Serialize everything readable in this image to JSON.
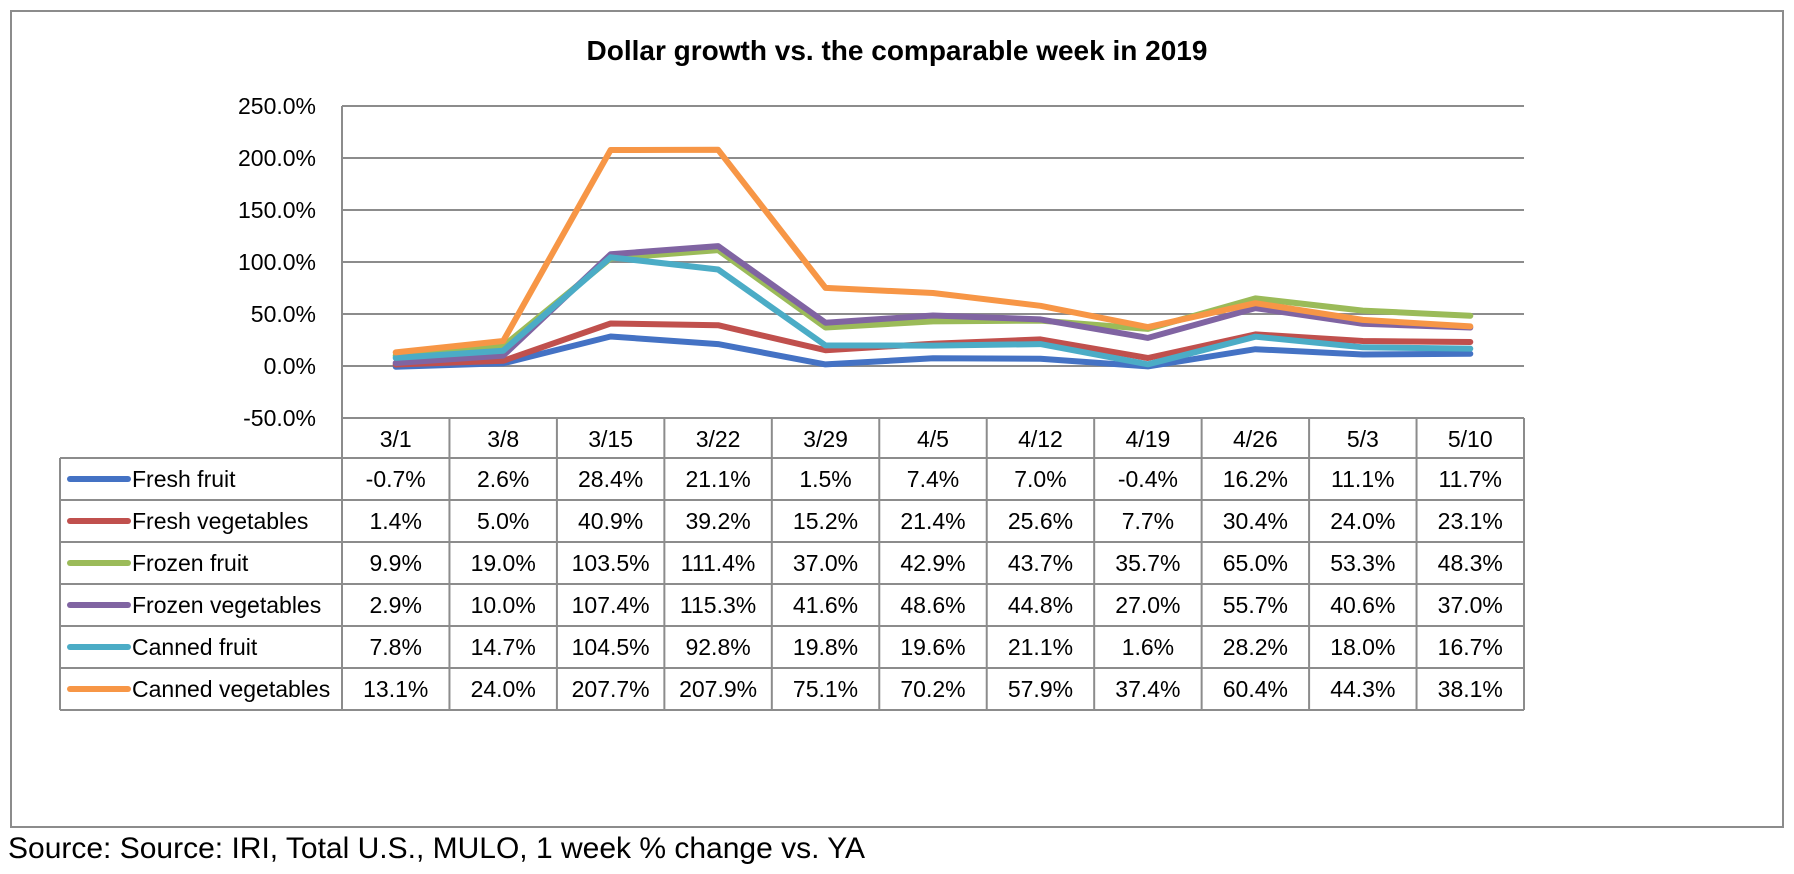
{
  "chart_data": {
    "type": "line",
    "title": "Dollar growth vs. the comparable week in 2019",
    "xlabel": "",
    "ylabel": "",
    "categories": [
      "3/1",
      "3/8",
      "3/15",
      "3/22",
      "3/29",
      "4/5",
      "4/12",
      "4/19",
      "4/26",
      "5/3",
      "5/10"
    ],
    "yticks": [
      "250.0%",
      "200.0%",
      "150.0%",
      "100.0%",
      "50.0%",
      "0.0%",
      "-50.0%"
    ],
    "ylim": [
      -50,
      250
    ],
    "grid": true,
    "legend": "data-table",
    "series": [
      {
        "name": "Fresh fruit",
        "color": "#4472C4",
        "values": [
          -0.7,
          2.6,
          28.4,
          21.1,
          1.5,
          7.4,
          7.0,
          -0.4,
          16.2,
          11.1,
          11.7
        ],
        "labels": [
          "-0.7%",
          "2.6%",
          "28.4%",
          "21.1%",
          "1.5%",
          "7.4%",
          "7.0%",
          "-0.4%",
          "16.2%",
          "11.1%",
          "11.7%"
        ]
      },
      {
        "name": "Fresh vegetables",
        "color": "#C0504D",
        "values": [
          1.4,
          5.0,
          40.9,
          39.2,
          15.2,
          21.4,
          25.6,
          7.7,
          30.4,
          24.0,
          23.1
        ],
        "labels": [
          "1.4%",
          "5.0%",
          "40.9%",
          "39.2%",
          "15.2%",
          "21.4%",
          "25.6%",
          "7.7%",
          "30.4%",
          "24.0%",
          "23.1%"
        ]
      },
      {
        "name": "Frozen fruit",
        "color": "#9BBB59",
        "values": [
          9.9,
          19.0,
          103.5,
          111.4,
          37.0,
          42.9,
          43.7,
          35.7,
          65.0,
          53.3,
          48.3
        ],
        "labels": [
          "9.9%",
          "19.0%",
          "103.5%",
          "111.4%",
          "37.0%",
          "42.9%",
          "43.7%",
          "35.7%",
          "65.0%",
          "53.3%",
          "48.3%"
        ]
      },
      {
        "name": "Frozen vegetables",
        "color": "#8064A2",
        "values": [
          2.9,
          10.0,
          107.4,
          115.3,
          41.6,
          48.6,
          44.8,
          27.0,
          55.7,
          40.6,
          37.0
        ],
        "labels": [
          "2.9%",
          "10.0%",
          "107.4%",
          "115.3%",
          "41.6%",
          "48.6%",
          "44.8%",
          "27.0%",
          "55.7%",
          "40.6%",
          "37.0%"
        ]
      },
      {
        "name": "Canned fruit",
        "color": "#4BACC6",
        "values": [
          7.8,
          14.7,
          104.5,
          92.8,
          19.8,
          19.6,
          21.1,
          1.6,
          28.2,
          18.0,
          16.7
        ],
        "labels": [
          "7.8%",
          "14.7%",
          "104.5%",
          "92.8%",
          "19.8%",
          "19.6%",
          "21.1%",
          "1.6%",
          "28.2%",
          "18.0%",
          "16.7%"
        ]
      },
      {
        "name": "Canned vegetables",
        "color": "#F79646",
        "values": [
          13.1,
          24.0,
          207.7,
          207.9,
          75.1,
          70.2,
          57.9,
          37.4,
          60.4,
          44.3,
          38.1
        ],
        "labels": [
          "13.1%",
          "24.0%",
          "207.7%",
          "207.9%",
          "75.1%",
          "70.2%",
          "57.9%",
          "37.4%",
          "60.4%",
          "44.3%",
          "38.1%"
        ]
      }
    ]
  },
  "source_note": "Source: Source: IRI, Total U.S., MULO, 1 week % change vs. YA"
}
